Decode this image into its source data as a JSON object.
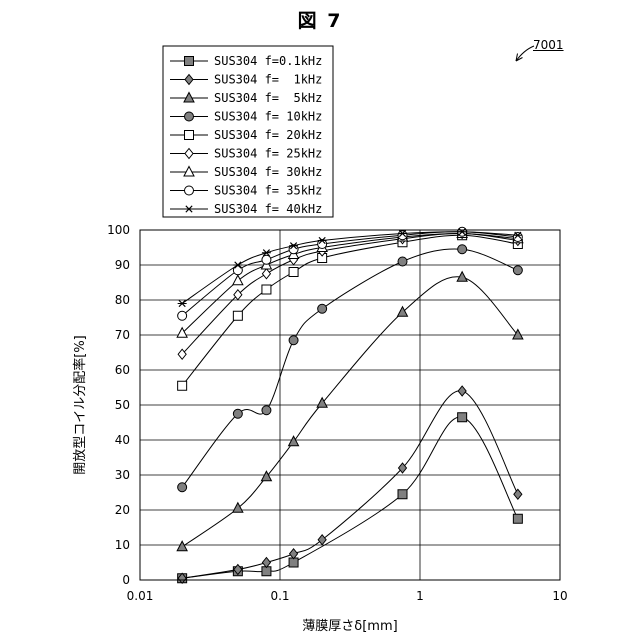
{
  "figure": {
    "title": "図 7",
    "reference": "7001"
  },
  "chart_data": {
    "type": "line",
    "title": "図 7",
    "xlabel": "薄膜厚さδ[mm]",
    "ylabel": "開放型コイル分配率[%]",
    "x_scale": "log",
    "xlim": [
      0.01,
      10
    ],
    "ylim": [
      0,
      100
    ],
    "x_ticks": [
      0.01,
      0.1,
      1,
      10
    ],
    "x_tick_labels": [
      "0.01",
      "0.1",
      "1",
      "10"
    ],
    "y_ticks": [
      0,
      10,
      20,
      30,
      40,
      50,
      60,
      70,
      80,
      90,
      100
    ],
    "grid": true,
    "legend_position": "top-left, outside plot area",
    "x": [
      0.02,
      0.05,
      0.08,
      0.125,
      0.2,
      0.75,
      2,
      5
    ],
    "series": [
      {
        "name": "SUS304 f=0.1kHz",
        "marker": "square",
        "fill": "#808080",
        "values": [
          0.5,
          2.5,
          2.5,
          5,
          null,
          24.5,
          46.5,
          17.5
        ]
      },
      {
        "name": "SUS304 f=  1kHz",
        "marker": "diamond",
        "fill": "#808080",
        "values": [
          0.5,
          3,
          5,
          7.5,
          11.5,
          32,
          54,
          24.5
        ]
      },
      {
        "name": "SUS304 f=  5kHz",
        "marker": "triangle",
        "fill": "#808080",
        "values": [
          9.5,
          20.5,
          29.5,
          39.5,
          50.5,
          76.5,
          86.5,
          70
        ]
      },
      {
        "name": "SUS304 f= 10kHz",
        "marker": "circle",
        "fill": "#808080",
        "values": [
          26.5,
          47.5,
          48.5,
          68.5,
          77.5,
          91,
          94.5,
          88.5
        ]
      },
      {
        "name": "SUS304 f= 20kHz",
        "marker": "square",
        "fill": "#ffffff",
        "values": [
          55.5,
          75.5,
          83,
          88,
          92,
          96.5,
          98.5,
          96
        ]
      },
      {
        "name": "SUS304 f= 25kHz",
        "marker": "diamond",
        "fill": "#ffffff",
        "values": [
          64.5,
          81.5,
          87.5,
          91.5,
          94,
          97.5,
          99,
          97
        ]
      },
      {
        "name": "SUS304 f= 30kHz",
        "marker": "triangle",
        "fill": "#ffffff",
        "values": [
          70.5,
          85.5,
          90,
          93,
          95,
          98,
          99,
          97.5
        ]
      },
      {
        "name": "SUS304 f= 35kHz",
        "marker": "circle",
        "fill": "#ffffff",
        "values": [
          75.5,
          88.5,
          91.5,
          94.5,
          96,
          98.5,
          99.5,
          98
        ]
      },
      {
        "name": "SUS304 f= 40kHz",
        "marker": "asterisk",
        "fill": "none",
        "values": [
          79,
          90,
          93.5,
          95.5,
          97,
          99,
          99.5,
          98.5
        ]
      }
    ]
  }
}
